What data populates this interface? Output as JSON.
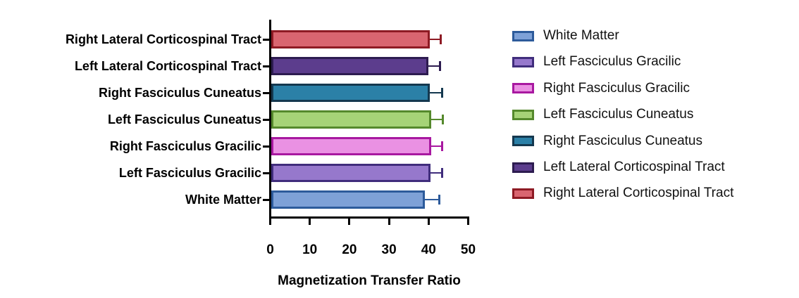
{
  "chart_data": {
    "type": "bar",
    "orientation": "horizontal",
    "title": "",
    "xlabel": "Magnetization Transfer Ratio",
    "ylabel": "",
    "xlim": [
      0,
      50
    ],
    "xticks": [
      "0",
      "10",
      "20",
      "30",
      "40",
      "50"
    ],
    "grid": false,
    "legend_position": "right",
    "axis_color": "#000000",
    "background_color": "#ffffff",
    "bars_top_to_bottom": [
      {
        "label": "Right Lateral Corticospinal Tract",
        "value": 40.6,
        "error": 2.6,
        "fill": "#d96570",
        "stroke": "#8e1a24"
      },
      {
        "label": "Left Lateral Corticospinal Tract",
        "value": 40.2,
        "error": 2.9,
        "fill": "#5c3d8d",
        "stroke": "#2d1c50"
      },
      {
        "label": "Right Fasciculus Cuneatus",
        "value": 40.6,
        "error": 3.0,
        "fill": "#2b80a7",
        "stroke": "#14384f"
      },
      {
        "label": "Left Fasciculus Cuneatus",
        "value": 40.9,
        "error": 2.9,
        "fill": "#a6d377",
        "stroke": "#55892c"
      },
      {
        "label": "Right Fasciculus Gracilic",
        "value": 40.9,
        "error": 2.7,
        "fill": "#ea91e3",
        "stroke": "#a818a0"
      },
      {
        "label": "Left Fasciculus Gracilic",
        "value": 40.7,
        "error": 2.9,
        "fill": "#9678cc",
        "stroke": "#402d7c"
      },
      {
        "label": "White Matter",
        "value": 39.3,
        "error": 3.6,
        "fill": "#7ea1d7",
        "stroke": "#2d5b9b"
      }
    ],
    "legend_top_to_bottom": [
      {
        "label": "White Matter",
        "fill": "#7ea1d7",
        "stroke": "#2d5b9b"
      },
      {
        "label": "Left Fasciculus Gracilic",
        "fill": "#9678cc",
        "stroke": "#402d7c"
      },
      {
        "label": "Right Fasciculus Gracilic",
        "fill": "#ea91e3",
        "stroke": "#a818a0"
      },
      {
        "label": "Left Fasciculus Cuneatus",
        "fill": "#a6d377",
        "stroke": "#55892c"
      },
      {
        "label": "Right Fasciculus Cuneatus",
        "fill": "#2b80a7",
        "stroke": "#14384f"
      },
      {
        "label": "Left Lateral Corticospinal Tract",
        "fill": "#5c3d8d",
        "stroke": "#2d1c50"
      },
      {
        "label": "Right Lateral Corticospinal Tract",
        "fill": "#d96570",
        "stroke": "#8e1a24"
      }
    ]
  }
}
